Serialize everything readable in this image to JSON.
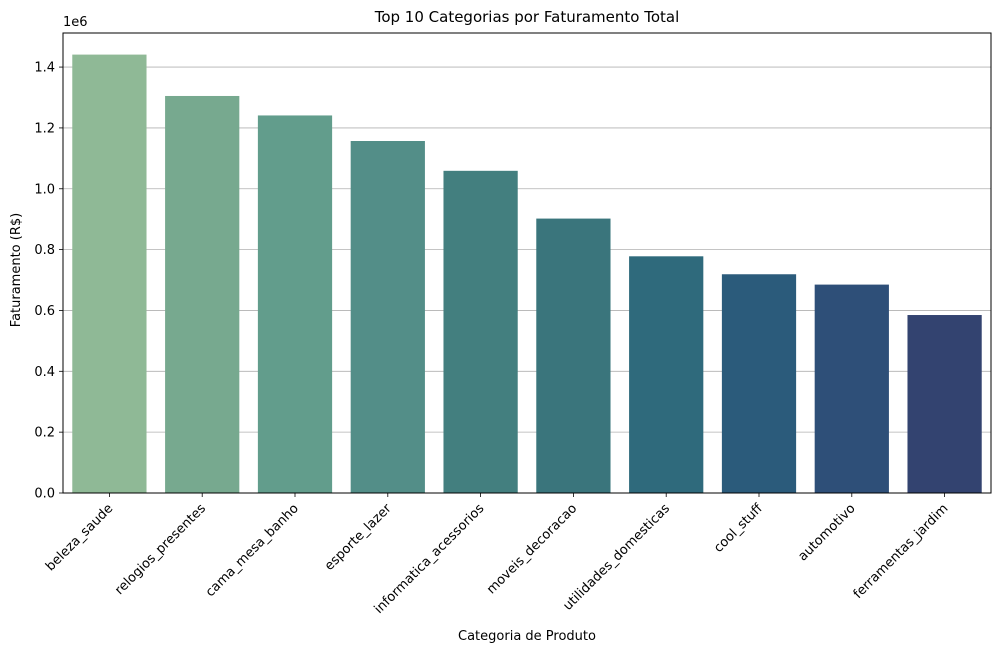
{
  "chart_data": {
    "type": "bar",
    "title": "Top 10 Categorias por Faturamento Total",
    "xlabel": "Categoria de Produto",
    "ylabel": "Faturamento (R$)",
    "y_offset_label": "1e6",
    "ylim": [
      0,
      1.512
    ],
    "y_ticks": [
      0.0,
      0.2,
      0.4,
      0.6,
      0.8,
      1.0,
      1.2,
      1.4
    ],
    "y_tick_labels": [
      "0.0",
      "0.2",
      "0.4",
      "0.6",
      "0.8",
      "1.0",
      "1.2",
      "1.4"
    ],
    "grid": "y",
    "categories": [
      "beleza_saude",
      "relogios_presentes",
      "cama_mesa_banho",
      "esporte_lazer",
      "informatica_acessorios",
      "moveis_decoracao",
      "utilidades_domesticas",
      "cool_stuff",
      "automotivo",
      "ferramentas_jardim"
    ],
    "values": [
      1.441,
      1.305,
      1.241,
      1.157,
      1.059,
      0.902,
      0.778,
      0.719,
      0.685,
      0.585
    ],
    "colors": [
      "#8fb996",
      "#77a98f",
      "#629d8c",
      "#538e88",
      "#437f7f",
      "#3a757c",
      "#2f6a7c",
      "#2b5b7b",
      "#2e4f78",
      "#334370"
    ]
  }
}
